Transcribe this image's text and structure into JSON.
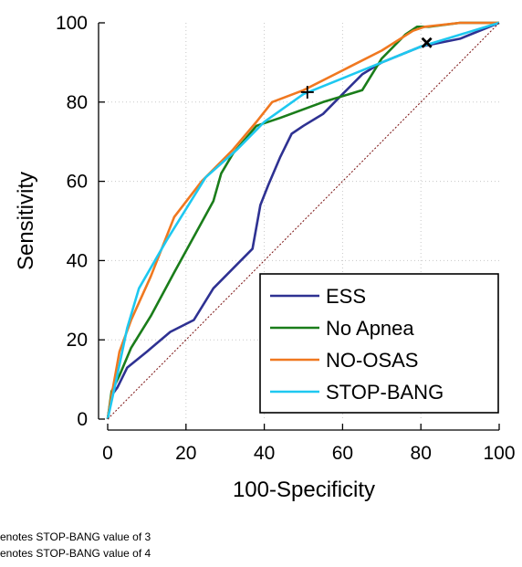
{
  "chart_data": {
    "type": "line",
    "xlabel": "100-Specificity",
    "ylabel": "Sensitivity",
    "xlim": [
      0,
      100
    ],
    "ylim": [
      0,
      100
    ],
    "xticks": [
      "0",
      "20",
      "40",
      "60",
      "80",
      "100"
    ],
    "yticks": [
      "0",
      "20",
      "40",
      "60",
      "80",
      "100"
    ],
    "grid": "dotted",
    "legend_position": "bottom-right",
    "series": [
      {
        "name": "ESS",
        "color": "#2e3192",
        "x": [
          0,
          0.5,
          1,
          2.5,
          5,
          10,
          16,
          22,
          27,
          32,
          37,
          39,
          41,
          44,
          47,
          50,
          55,
          60,
          65,
          70,
          80,
          90,
          100
        ],
        "y": [
          0,
          3,
          6,
          8,
          13,
          17,
          22,
          25,
          33,
          38,
          43,
          54,
          59,
          66,
          72,
          74,
          77,
          82,
          87,
          90,
          94,
          96,
          100
        ]
      },
      {
        "name": "No Apnea",
        "color": "#1a7d1a",
        "x": [
          0,
          1,
          3,
          6,
          11,
          17,
          27,
          29,
          32,
          38,
          44,
          55,
          65,
          70,
          76,
          79,
          82,
          90,
          100
        ],
        "y": [
          0,
          7,
          11,
          18,
          26,
          37,
          55,
          62,
          67,
          74,
          76,
          80,
          83,
          91,
          97,
          99,
          99,
          100,
          100
        ]
      },
      {
        "name": "NO-OSAS",
        "color": "#f07820",
        "x": [
          0,
          1,
          3,
          6,
          11,
          17,
          24,
          32,
          38,
          42,
          50,
          60,
          70,
          78,
          81,
          90,
          100
        ],
        "y": [
          0,
          6,
          17,
          25,
          36,
          51,
          60,
          68,
          75,
          80,
          83,
          88,
          93,
          98,
          99,
          100,
          100
        ]
      },
      {
        "name": "STOP-BANG",
        "color": "#1ec8f0",
        "x": [
          0,
          2,
          5,
          8,
          15,
          25,
          33,
          40,
          50,
          60,
          70,
          80,
          90,
          100
        ],
        "y": [
          0,
          9,
          23,
          33,
          45,
          61,
          68,
          75,
          82,
          86,
          90,
          94,
          97,
          100
        ]
      },
      {
        "name": "",
        "color": "#7a1010",
        "style": "dotted",
        "x": [
          0,
          100
        ],
        "y": [
          0,
          100
        ]
      }
    ],
    "markers": [
      {
        "symbol": "plus",
        "x": 51,
        "y": 82.5
      },
      {
        "symbol": "cross",
        "x": 81.5,
        "y": 95
      }
    ]
  },
  "footnotes": [
    "enotes STOP-BANG value of 3",
    "enotes STOP-BANG value of 4"
  ]
}
